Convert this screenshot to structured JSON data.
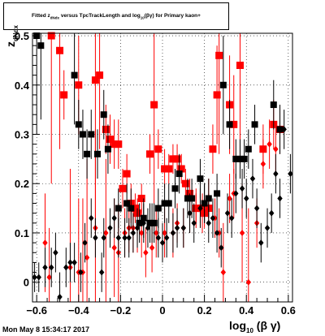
{
  "title": {
    "prefix": "Fitted  z",
    "sub1": "dNdx",
    "middle": "  versus TpcTrackLength and log",
    "sub2": "10",
    "suffix": "(βγ) for Primary kaon+"
  },
  "ylabel": {
    "main": "z",
    "sub": "dNdx"
  },
  "xlabel": {
    "main": "log",
    "sub": "10",
    "suffix": " (β γ)"
  },
  "footer": "Mon May  8 15:34:17 2017",
  "colors": {
    "red": "#ff0000",
    "black": "#000000",
    "frame": "#000000"
  },
  "chart_data": {
    "type": "scatter",
    "xlim": [
      -0.62,
      0.62
    ],
    "ylim": [
      -0.04,
      0.505
    ],
    "xticks": [
      -0.6,
      -0.4,
      -0.2,
      0,
      0.2,
      0.4,
      0.6
    ],
    "xtick_labels": [
      "−0.6",
      "−0.4",
      "−0.2",
      "0",
      "0.2",
      "0.4",
      "0.6"
    ],
    "yticks": [
      0,
      0.1,
      0.2,
      0.3,
      0.4,
      0.5
    ],
    "ytick_labels": [
      "0",
      "0.1",
      "0.2",
      "0.3",
      "0.4",
      "0.5"
    ],
    "grid": true,
    "series": [
      {
        "marker": "square",
        "color": "#ff0000",
        "size": 9,
        "points": [
          [
            -0.53,
            0.5,
            0.3
          ],
          [
            -0.49,
            0.47,
            0.2
          ],
          [
            -0.47,
            0.38,
            0.05
          ],
          [
            -0.4,
            0.4,
            0.1
          ],
          [
            -0.32,
            0.41,
            0.3
          ],
          [
            -0.3,
            0.42,
            0.15
          ],
          [
            -0.27,
            0.31,
            0.05
          ],
          [
            -0.25,
            0.29,
            0.05
          ],
          [
            -0.23,
            0.28,
            0.05
          ],
          [
            -0.21,
            0.28,
            0.05
          ],
          [
            -0.19,
            0.19,
            0.04
          ],
          [
            -0.17,
            0.22,
            0.04
          ],
          [
            -0.15,
            0.16,
            0.04
          ],
          [
            -0.13,
            0.15,
            0.03
          ],
          [
            -0.12,
            0.14,
            0.03
          ],
          [
            -0.1,
            0.17,
            0.03
          ],
          [
            -0.06,
            0.26,
            0.04
          ],
          [
            -0.04,
            0.36,
            0.2
          ],
          [
            -0.02,
            0.27,
            0.04
          ],
          [
            0.01,
            0.23,
            0.04
          ],
          [
            0.03,
            0.23,
            0.03
          ],
          [
            0.05,
            0.25,
            0.03
          ],
          [
            0.07,
            0.25,
            0.03
          ],
          [
            0.09,
            0.23,
            0.03
          ],
          [
            0.11,
            0.2,
            0.03
          ],
          [
            0.13,
            0.18,
            0.03
          ],
          [
            0.16,
            0.15,
            0.03
          ],
          [
            0.18,
            0.15,
            0.03
          ],
          [
            0.2,
            0.14,
            0.03
          ],
          [
            0.22,
            0.15,
            0.03
          ],
          [
            0.24,
            0.27,
            0.05
          ],
          [
            0.26,
            0.38,
            0.1
          ],
          [
            0.27,
            0.46,
            0.2
          ],
          [
            0.32,
            0.36,
            0.1
          ],
          [
            0.34,
            0.32,
            0.1
          ],
          [
            0.37,
            0.44,
            0.2
          ],
          [
            0.48,
            0.27,
            0.05
          ],
          [
            0.53,
            0.32,
            0.05
          ],
          [
            0.56,
            0.31,
            0.05
          ]
        ]
      },
      {
        "marker": "diamond",
        "color": "#ff0000",
        "size": 8,
        "points": [
          [
            -0.56,
            0.08,
            0.1
          ],
          [
            -0.54,
            0.01,
            0.1
          ],
          [
            -0.44,
            0.03,
            0.2
          ],
          [
            -0.4,
            0.02,
            0.15
          ],
          [
            -0.38,
            0.02,
            0.15
          ],
          [
            -0.36,
            0.05,
            0.2
          ],
          [
            -0.32,
            0.11,
            0.2
          ],
          [
            -0.27,
            0.1,
            0.15
          ],
          [
            -0.23,
            0.07,
            0.1
          ],
          [
            -0.21,
            0.06,
            0.1
          ],
          [
            -0.18,
            0.1,
            0.05
          ],
          [
            -0.16,
            0.11,
            0.05
          ],
          [
            -0.14,
            0.11,
            0.05
          ],
          [
            -0.12,
            0.11,
            0.05
          ],
          [
            -0.1,
            0.1,
            0.05
          ],
          [
            -0.08,
            0.06,
            0.05
          ],
          [
            -0.05,
            0.07,
            0.05
          ],
          [
            -0.03,
            0.1,
            0.05
          ],
          [
            0.01,
            0.1,
            0.05
          ],
          [
            0.05,
            0.1,
            0.05
          ],
          [
            0.07,
            0.12,
            0.04
          ],
          [
            0.1,
            0.11,
            0.04
          ],
          [
            0.13,
            0.14,
            0.04
          ],
          [
            0.16,
            0.15,
            0.04
          ],
          [
            0.19,
            0.14,
            0.04
          ],
          [
            0.22,
            0.17,
            0.04
          ],
          [
            0.25,
            0.13,
            0.04
          ],
          [
            0.27,
            0.1,
            0.05
          ],
          [
            0.29,
            0.02,
            0.1
          ],
          [
            0.32,
            0.17,
            0.05
          ],
          [
            0.34,
            0.18,
            0.05
          ],
          [
            0.38,
            0.1,
            0.1
          ],
          [
            0.41,
            0.0,
            0.15
          ],
          [
            0.45,
            0.12,
            0.05
          ],
          [
            0.48,
            0.24,
            0.05
          ],
          [
            0.51,
            0.28,
            0.05
          ],
          [
            0.54,
            0.27,
            0.05
          ]
        ]
      },
      {
        "marker": "square",
        "color": "#000000",
        "size": 8,
        "points": [
          [
            -0.6,
            0.5,
            0.2
          ],
          [
            -0.58,
            0.48,
            0.15
          ],
          [
            -0.42,
            0.42,
            0.1
          ],
          [
            -0.4,
            0.32,
            0.05
          ],
          [
            -0.38,
            0.3,
            0.05
          ],
          [
            -0.34,
            0.3,
            0.05
          ],
          [
            -0.36,
            0.26,
            0.05
          ],
          [
            -0.31,
            0.26,
            0.05
          ],
          [
            -0.28,
            0.34,
            0.05
          ],
          [
            -0.26,
            0.27,
            0.05
          ],
          [
            -0.21,
            0.15,
            0.04
          ],
          [
            -0.17,
            0.16,
            0.04
          ],
          [
            -0.15,
            0.15,
            0.04
          ],
          [
            -0.11,
            0.12,
            0.04
          ],
          [
            -0.09,
            0.13,
            0.04
          ],
          [
            -0.06,
            0.12,
            0.04
          ],
          [
            -0.04,
            0.12,
            0.04
          ],
          [
            -0.02,
            0.15,
            0.04
          ],
          [
            0.01,
            0.16,
            0.04
          ],
          [
            0.03,
            0.16,
            0.04
          ],
          [
            0.06,
            0.19,
            0.04
          ],
          [
            0.08,
            0.22,
            0.04
          ],
          [
            0.12,
            0.17,
            0.04
          ],
          [
            0.14,
            0.17,
            0.04
          ],
          [
            0.18,
            0.21,
            0.04
          ],
          [
            0.2,
            0.16,
            0.04
          ],
          [
            0.22,
            0.17,
            0.04
          ],
          [
            0.26,
            0.18,
            0.04
          ],
          [
            0.29,
            0.4,
            0.1
          ],
          [
            0.32,
            0.32,
            0.05
          ],
          [
            0.35,
            0.25,
            0.04
          ],
          [
            0.37,
            0.25,
            0.04
          ],
          [
            0.39,
            0.25,
            0.04
          ],
          [
            0.41,
            0.27,
            0.04
          ],
          [
            0.44,
            0.32,
            0.04
          ],
          [
            0.53,
            0.36,
            0.05
          ],
          [
            0.56,
            0.31,
            0.05
          ]
        ]
      },
      {
        "marker": "diamond",
        "color": "#000000",
        "size": 8,
        "points": [
          [
            -0.61,
            0.01,
            0.03
          ],
          [
            -0.59,
            0.01,
            0.03
          ],
          [
            -0.56,
            0.03,
            0.04
          ],
          [
            -0.53,
            0.03,
            0.04
          ],
          [
            -0.51,
            0.06,
            0.04
          ],
          [
            -0.49,
            -0.03,
            0.05
          ],
          [
            -0.46,
            0.03,
            0.04
          ],
          [
            -0.44,
            0.04,
            0.04
          ],
          [
            -0.42,
            0.04,
            0.04
          ],
          [
            -0.39,
            0.02,
            0.04
          ],
          [
            -0.37,
            0.08,
            0.04
          ],
          [
            -0.34,
            0.13,
            0.04
          ],
          [
            -0.32,
            0.09,
            0.04
          ],
          [
            -0.29,
            0.02,
            0.04
          ],
          [
            -0.28,
            0.09,
            0.04
          ],
          [
            -0.25,
            0.11,
            0.04
          ],
          [
            -0.23,
            0.13,
            0.04
          ],
          [
            -0.21,
            0.09,
            0.04
          ],
          [
            -0.18,
            0.09,
            0.04
          ],
          [
            -0.16,
            0.09,
            0.04
          ],
          [
            -0.14,
            0.1,
            0.04
          ],
          [
            -0.12,
            0.11,
            0.04
          ],
          [
            -0.09,
            0.12,
            0.04
          ],
          [
            -0.07,
            0.11,
            0.04
          ],
          [
            -0.05,
            0.12,
            0.04
          ],
          [
            -0.02,
            0.09,
            0.04
          ],
          [
            0.0,
            0.08,
            0.04
          ],
          [
            0.02,
            0.09,
            0.04
          ],
          [
            0.05,
            0.1,
            0.04
          ],
          [
            0.07,
            0.11,
            0.04
          ],
          [
            0.1,
            0.11,
            0.04
          ],
          [
            0.13,
            0.14,
            0.04
          ],
          [
            0.15,
            0.12,
            0.04
          ],
          [
            0.18,
            0.15,
            0.04
          ],
          [
            0.2,
            0.16,
            0.04
          ],
          [
            0.22,
            0.12,
            0.04
          ],
          [
            0.24,
            0.13,
            0.04
          ],
          [
            0.26,
            0.1,
            0.04
          ],
          [
            0.28,
            0.07,
            0.04
          ],
          [
            0.31,
            0.14,
            0.04
          ],
          [
            0.33,
            0.13,
            0.04
          ],
          [
            0.35,
            0.18,
            0.04
          ],
          [
            0.38,
            0.19,
            0.04
          ],
          [
            0.4,
            0.17,
            0.04
          ],
          [
            0.43,
            0.21,
            0.04
          ],
          [
            0.45,
            0.15,
            0.04
          ],
          [
            0.47,
            0.08,
            0.04
          ],
          [
            0.5,
            0.11,
            0.04
          ],
          [
            0.52,
            0.14,
            0.04
          ],
          [
            0.54,
            0.22,
            0.04
          ],
          [
            0.56,
            0.17,
            0.04
          ],
          [
            0.58,
            0.31,
            0.04
          ],
          [
            0.61,
            0.22,
            0.04
          ]
        ]
      }
    ]
  }
}
